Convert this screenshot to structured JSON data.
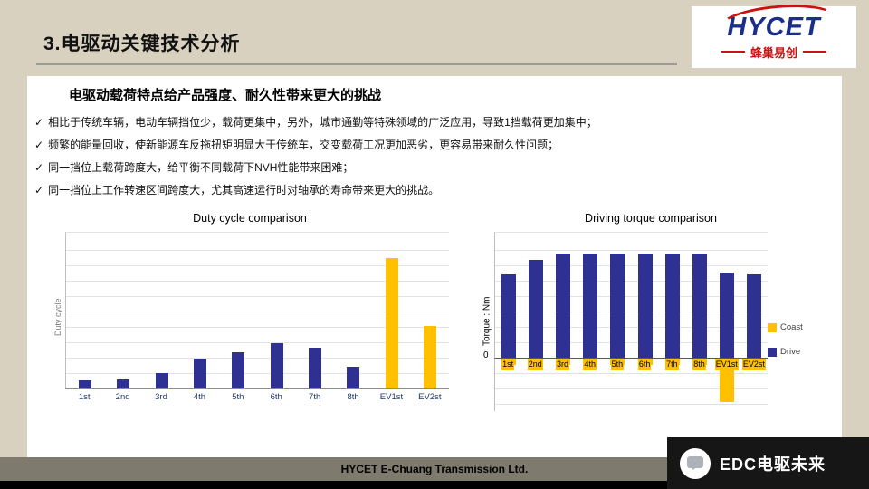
{
  "slide": {
    "title": "3.电驱动关键技术分析",
    "subtitle": "电驱动载荷特点给产品强度、耐久性带来更大的挑战",
    "check_glyph": "✓",
    "bullets": [
      "相比于传统车辆，电动车辆挡位少，载荷更集中，另外，城市通勤等特殊领域的广泛应用，导致1挡载荷更加集中；",
      "频繁的能量回收，使新能源车反拖扭矩明显大于传统车，交变载荷工况更加恶劣，更容易带来耐久性问题；",
      "同一挡位上载荷跨度大，给平衡不同载荷下NVH性能带来困难；",
      "同一挡位上工作转速区间跨度大，尤其高速运行时对轴承的寿命带来更大的挑战。"
    ]
  },
  "logo": {
    "brand": "HYCET",
    "tagline": "蜂巢易创"
  },
  "chart_data": [
    {
      "type": "bar",
      "title": "Duty cycle comparison",
      "ylabel": "Duty cycle",
      "xlabel": "",
      "categories": [
        "1st",
        "2nd",
        "3rd",
        "4th",
        "5th",
        "6th",
        "7th",
        "8th",
        "EV1st",
        "EV2st"
      ],
      "values": [
        5,
        6,
        10,
        19,
        23,
        29,
        26,
        14,
        84,
        40
      ],
      "bar_colors": [
        "navy",
        "navy",
        "navy",
        "navy",
        "navy",
        "navy",
        "navy",
        "navy",
        "yellow",
        "yellow"
      ],
      "ylim": [
        0,
        100
      ],
      "grid": true
    },
    {
      "type": "bar",
      "title": "Driving torque comparison",
      "ylabel": "Torque : Nm",
      "xlabel": "",
      "categories": [
        "1st",
        "2nd",
        "3rd",
        "4th",
        "5th",
        "6th",
        "7th",
        "8th",
        "EV1st",
        "EV2st"
      ],
      "series": [
        {
          "name": "Coast",
          "color": "#ffc000",
          "values": [
            -6,
            -6,
            -6,
            -6,
            -6,
            -6,
            -6,
            -6,
            -43,
            -10
          ]
        },
        {
          "name": "Drive",
          "color": "#2e3192",
          "values": [
            80,
            94,
            100,
            100,
            100,
            100,
            100,
            100,
            82,
            80
          ]
        }
      ],
      "ylim": [
        -52,
        120
      ],
      "zero_label": "0",
      "legend": [
        "Coast",
        "Drive"
      ],
      "legend_position": "right",
      "grid": true
    }
  ],
  "footer": {
    "company": "HYCET E-Chuang Transmission Ltd."
  },
  "watermark": {
    "label": "EDC电驱未来"
  },
  "colors": {
    "bar_navy": "#2e3192",
    "bar_yellow": "#ffc000",
    "slide_background": "#d9d1c0",
    "logo_blue": "#1b2f8a",
    "logo_red": "#cc1111",
    "footer_strip": "#7e7a6d"
  }
}
